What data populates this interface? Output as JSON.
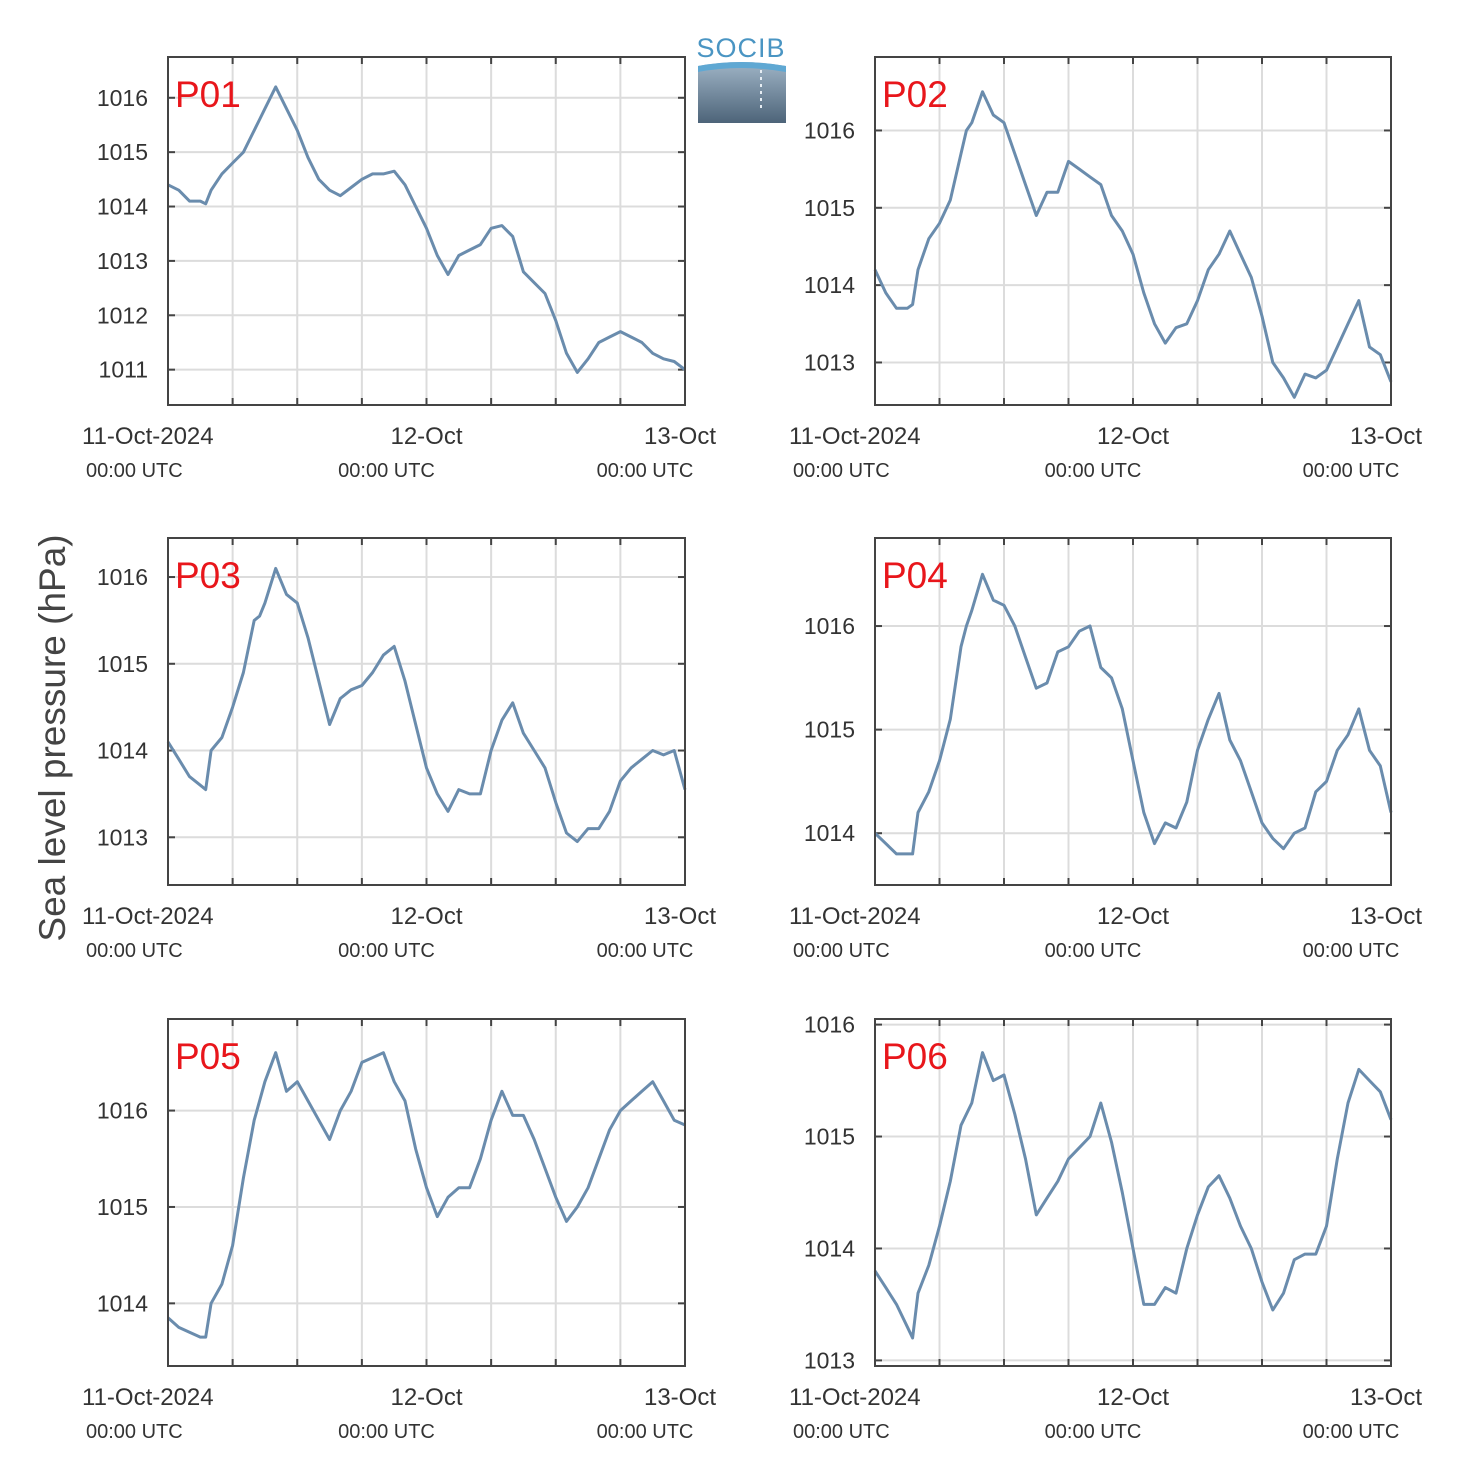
{
  "figure": {
    "ylabel": "Sea level pressure (hPa)",
    "logo_text": "SOCIB",
    "x_tick_dates": [
      "11-Oct-2024",
      "12-Oct",
      "13-Oct"
    ],
    "x_tick_times": [
      "00:00 UTC",
      "00:00 UTC",
      "00:00 UTC"
    ],
    "line_color": "#6a8cad",
    "label_color": "#e8161b",
    "grid_color": "#dcdcdc"
  },
  "chart_data": [
    {
      "type": "line",
      "title": "P01",
      "xlim": [
        0,
        48
      ],
      "ylim": [
        1010.35,
        1016.75
      ],
      "yticks": [
        1011,
        1012,
        1013,
        1014,
        1015,
        1016
      ],
      "x": [
        0,
        1,
        2,
        3,
        3.5,
        4,
        5,
        6,
        7,
        8,
        8.5,
        9,
        10,
        11,
        12,
        13,
        14,
        15,
        16,
        17,
        18,
        19,
        20,
        21,
        22,
        23,
        24,
        25,
        26,
        27,
        28,
        29,
        30,
        31,
        32,
        33,
        34,
        35,
        36,
        37,
        38,
        39,
        40,
        41,
        42,
        43,
        44,
        45,
        46,
        47,
        48
      ],
      "values": [
        1014.4,
        1014.3,
        1014.1,
        1014.1,
        1014.05,
        1014.3,
        1014.6,
        1014.8,
        1015.0,
        1015.4,
        1015.6,
        1015.8,
        1016.2,
        1015.8,
        1015.4,
        1014.9,
        1014.5,
        1014.3,
        1014.2,
        1014.35,
        1014.5,
        1014.6,
        1014.6,
        1014.65,
        1014.4,
        1014.0,
        1013.6,
        1013.1,
        1012.75,
        1013.1,
        1013.2,
        1013.3,
        1013.6,
        1013.65,
        1013.45,
        1012.8,
        1012.6,
        1012.4,
        1011.9,
        1011.3,
        1010.95,
        1011.2,
        1011.5,
        1011.6,
        1011.7,
        1011.6,
        1011.5,
        1011.3,
        1011.2,
        1011.15,
        1011.0
      ]
    },
    {
      "type": "line",
      "title": "P02",
      "xlim": [
        0,
        48
      ],
      "ylim": [
        1012.45,
        1016.95
      ],
      "yticks": [
        1013,
        1014,
        1015,
        1016
      ],
      "x": [
        0,
        1,
        2,
        3,
        3.5,
        4,
        5,
        6,
        7,
        8,
        8.5,
        9,
        10,
        11,
        12,
        13,
        14,
        15,
        16,
        17,
        18,
        19,
        20,
        21,
        22,
        23,
        24,
        25,
        26,
        27,
        28,
        29,
        30,
        31,
        32,
        33,
        34,
        35,
        36,
        37,
        38,
        39,
        40,
        41,
        42,
        43,
        44,
        45,
        46,
        47,
        48
      ],
      "values": [
        1014.2,
        1013.9,
        1013.7,
        1013.7,
        1013.75,
        1014.2,
        1014.6,
        1014.8,
        1015.1,
        1015.7,
        1016.0,
        1016.1,
        1016.5,
        1016.2,
        1016.1,
        1015.7,
        1015.3,
        1014.9,
        1015.2,
        1015.2,
        1015.6,
        1015.5,
        1015.4,
        1015.3,
        1014.9,
        1014.7,
        1014.4,
        1013.9,
        1013.5,
        1013.25,
        1013.45,
        1013.5,
        1013.8,
        1014.2,
        1014.4,
        1014.7,
        1014.4,
        1014.1,
        1013.6,
        1013.0,
        1012.8,
        1012.55,
        1012.85,
        1012.8,
        1012.9,
        1013.2,
        1013.5,
        1013.8,
        1013.2,
        1013.1,
        1012.75
      ]
    },
    {
      "type": "line",
      "title": "P03",
      "xlim": [
        0,
        48
      ],
      "ylim": [
        1012.45,
        1016.45
      ],
      "yticks": [
        1013,
        1014,
        1015,
        1016
      ],
      "x": [
        0,
        1,
        2,
        3,
        3.5,
        4,
        5,
        6,
        7,
        8,
        8.5,
        9,
        10,
        11,
        12,
        13,
        14,
        15,
        16,
        17,
        18,
        19,
        20,
        21,
        22,
        23,
        24,
        25,
        26,
        27,
        28,
        29,
        30,
        31,
        32,
        33,
        34,
        35,
        36,
        37,
        38,
        39,
        40,
        41,
        42,
        43,
        44,
        45,
        46,
        47,
        48
      ],
      "values": [
        1014.1,
        1013.9,
        1013.7,
        1013.6,
        1013.55,
        1014.0,
        1014.15,
        1014.5,
        1014.9,
        1015.5,
        1015.55,
        1015.7,
        1016.1,
        1015.8,
        1015.7,
        1015.3,
        1014.8,
        1014.3,
        1014.6,
        1014.7,
        1014.75,
        1014.9,
        1015.1,
        1015.2,
        1014.8,
        1014.3,
        1013.8,
        1013.5,
        1013.3,
        1013.55,
        1013.5,
        1013.5,
        1014.0,
        1014.35,
        1014.55,
        1014.2,
        1014.0,
        1013.8,
        1013.4,
        1013.05,
        1012.95,
        1013.1,
        1013.1,
        1013.3,
        1013.65,
        1013.8,
        1013.9,
        1014.0,
        1013.95,
        1014.0,
        1013.55
      ]
    },
    {
      "type": "line",
      "title": "P04",
      "xlim": [
        0,
        48
      ],
      "ylim": [
        1013.5,
        1016.85
      ],
      "yticks": [
        1014,
        1015,
        1016
      ],
      "x": [
        0,
        1,
        2,
        3,
        3.5,
        4,
        5,
        6,
        7,
        8,
        8.5,
        9,
        10,
        11,
        12,
        13,
        14,
        15,
        16,
        17,
        18,
        19,
        20,
        21,
        22,
        23,
        24,
        25,
        26,
        27,
        28,
        29,
        30,
        31,
        32,
        33,
        34,
        35,
        36,
        37,
        38,
        39,
        40,
        41,
        42,
        43,
        44,
        45,
        46,
        47,
        48
      ],
      "values": [
        1014.0,
        1013.9,
        1013.8,
        1013.8,
        1013.8,
        1014.2,
        1014.4,
        1014.7,
        1015.1,
        1015.8,
        1016.0,
        1016.15,
        1016.5,
        1016.25,
        1016.2,
        1016.0,
        1015.7,
        1015.4,
        1015.45,
        1015.75,
        1015.8,
        1015.95,
        1016.0,
        1015.6,
        1015.5,
        1015.2,
        1014.7,
        1014.2,
        1013.9,
        1014.1,
        1014.05,
        1014.3,
        1014.8,
        1015.1,
        1015.35,
        1014.9,
        1014.7,
        1014.4,
        1014.1,
        1013.95,
        1013.85,
        1014.0,
        1014.05,
        1014.4,
        1014.5,
        1014.8,
        1014.95,
        1015.2,
        1014.8,
        1014.65,
        1014.2
      ]
    },
    {
      "type": "line",
      "title": "P05",
      "xlim": [
        0,
        48
      ],
      "ylim": [
        1013.35,
        1016.95
      ],
      "yticks": [
        1014,
        1015,
        1016
      ],
      "x": [
        0,
        1,
        2,
        3,
        3.5,
        4,
        5,
        6,
        7,
        8,
        8.5,
        9,
        10,
        11,
        12,
        13,
        14,
        15,
        16,
        17,
        18,
        19,
        20,
        21,
        22,
        23,
        24,
        25,
        26,
        27,
        28,
        29,
        30,
        31,
        32,
        33,
        34,
        35,
        36,
        37,
        38,
        39,
        40,
        41,
        42,
        43,
        44,
        45,
        46,
        47,
        48
      ],
      "values": [
        1013.85,
        1013.75,
        1013.7,
        1013.65,
        1013.65,
        1014.0,
        1014.2,
        1014.6,
        1015.3,
        1015.9,
        1016.1,
        1016.3,
        1016.6,
        1016.2,
        1016.3,
        1016.1,
        1015.9,
        1015.7,
        1016.0,
        1016.2,
        1016.5,
        1016.55,
        1016.6,
        1016.3,
        1016.1,
        1015.6,
        1015.2,
        1014.9,
        1015.1,
        1015.2,
        1015.2,
        1015.5,
        1015.9,
        1016.2,
        1015.95,
        1015.95,
        1015.7,
        1015.4,
        1015.1,
        1014.85,
        1015.0,
        1015.2,
        1015.5,
        1015.8,
        1016.0,
        1016.1,
        1016.2,
        1016.3,
        1016.1,
        1015.9,
        1015.85
      ]
    },
    {
      "type": "line",
      "title": "P06",
      "xlim": [
        0,
        48
      ],
      "ylim": [
        1012.95,
        1016.05
      ],
      "yticks": [
        1013,
        1014,
        1015,
        1016
      ],
      "x": [
        0,
        1,
        2,
        3,
        3.5,
        4,
        5,
        6,
        7,
        8,
        8.5,
        9,
        10,
        11,
        12,
        13,
        14,
        15,
        16,
        17,
        18,
        19,
        20,
        21,
        22,
        23,
        24,
        25,
        26,
        27,
        28,
        29,
        30,
        31,
        32,
        33,
        34,
        35,
        36,
        37,
        38,
        39,
        40,
        41,
        42,
        43,
        44,
        45,
        46,
        47,
        48
      ],
      "values": [
        1013.8,
        1013.65,
        1013.5,
        1013.3,
        1013.2,
        1013.6,
        1013.85,
        1014.2,
        1014.6,
        1015.1,
        1015.2,
        1015.3,
        1015.75,
        1015.5,
        1015.55,
        1015.2,
        1014.8,
        1014.3,
        1014.45,
        1014.6,
        1014.8,
        1014.9,
        1015.0,
        1015.3,
        1014.95,
        1014.5,
        1014.0,
        1013.5,
        1013.5,
        1013.65,
        1013.6,
        1014.0,
        1014.3,
        1014.55,
        1014.65,
        1014.45,
        1014.2,
        1014.0,
        1013.7,
        1013.45,
        1013.6,
        1013.9,
        1013.95,
        1013.95,
        1014.2,
        1014.8,
        1015.3,
        1015.6,
        1015.5,
        1015.4,
        1015.15
      ]
    }
  ]
}
